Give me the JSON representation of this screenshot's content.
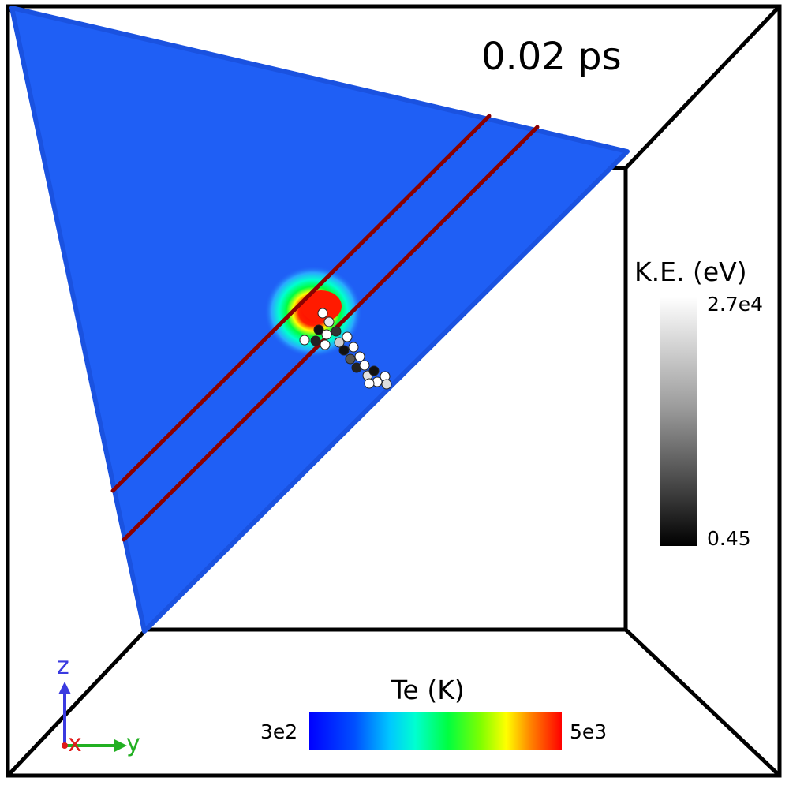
{
  "time_label": "0.02 ps",
  "colorbars": {
    "kinetic_energy": {
      "title": "K.E. (eV)",
      "max_label": "2.7e4",
      "min_label": "0.45",
      "colors": [
        "#000000",
        "#ffffff"
      ]
    },
    "electron_temperature": {
      "title": "Te (K)",
      "min_label": "3e2",
      "max_label": "5e3",
      "colors": [
        "#0000ff",
        "#00c8ff",
        "#00ff40",
        "#ffff00",
        "#ff8000",
        "#ff0000"
      ]
    }
  },
  "axes_triad": {
    "z_label": "z",
    "x_label": "x",
    "y_label": "y",
    "colors": {
      "z": "#3a3ae0",
      "x": "#e01a1a",
      "y": "#22b022"
    }
  },
  "colors": {
    "surface": "#1f5ff5",
    "track_lines": "#8b0000",
    "box_edges": "#000000",
    "hotspot": "#ff0000"
  }
}
